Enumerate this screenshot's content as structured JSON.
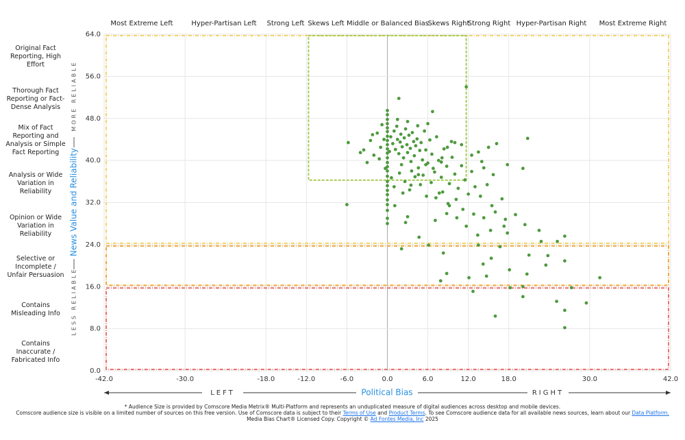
{
  "chart_data": {
    "type": "scatter",
    "bias_categories": [
      "Most Extreme Left",
      "Hyper-Partisan Left",
      "Strong Left",
      "Skews Left",
      "Middle or Balanced Bias",
      "Skews Right",
      "Strong Right",
      "Hyper-Partisan Right",
      "Most Extreme Right"
    ],
    "reliability_categories": [
      "Original Fact Reporting, High Effort",
      "Thorough Fact Reporting or Fact-Dense Analysis",
      "Mix of Fact Reporting and Analysis or Simple Fact Reporting",
      "Analysis or Wide Variation in Reliability",
      "Opinion or Wide Variation in Reliability",
      "Selective or Incomplete / Unfair Persuasion",
      "Contains Misleading Info",
      "Contains Inaccurate / Fabricated Info"
    ],
    "y_label": "News Value and Reliability",
    "y_top_note": "MORE RELIABLE",
    "y_bottom_note": "LESS RELIABLE",
    "x_label": "Political Bias",
    "x_left_note": "LEFT",
    "x_right_note": "RIGHT",
    "xlim": [
      -42,
      42
    ],
    "ylim": [
      0,
      64
    ],
    "xticks": [
      {
        "value": -42,
        "label": "-42.0"
      },
      {
        "value": -30,
        "label": "-30.0"
      },
      {
        "value": -18,
        "label": "-18.0"
      },
      {
        "value": -12,
        "label": "-12.0"
      },
      {
        "value": -6,
        "label": "-6.0"
      },
      {
        "value": 0,
        "label": "0.0"
      },
      {
        "value": 6,
        "label": "6.0"
      },
      {
        "value": 12,
        "label": "12.0"
      },
      {
        "value": 18,
        "label": "18.0"
      },
      {
        "value": 30,
        "label": "30.0"
      },
      {
        "value": 42,
        "label": "42.0"
      }
    ],
    "yticks": [
      {
        "value": 0,
        "label": "0.0"
      },
      {
        "value": 8,
        "label": "8.0"
      },
      {
        "value": 16,
        "label": "16.0"
      },
      {
        "value": 24,
        "label": "24.0"
      },
      {
        "value": 32,
        "label": "32.0"
      },
      {
        "value": 40,
        "label": "40.0"
      },
      {
        "value": 48,
        "label": "48.0"
      },
      {
        "value": 56,
        "label": "56.0"
      },
      {
        "value": 64,
        "label": "64.0"
      }
    ],
    "grid": true,
    "color": "#4e9a3e",
    "regions": [
      {
        "x": [
          -42,
          42
        ],
        "y": [
          24,
          64
        ],
        "color": "#f2d46b"
      },
      {
        "x": [
          -42,
          42
        ],
        "y": [
          16,
          24
        ],
        "color": "#f0a83a"
      },
      {
        "x": [
          -42,
          42
        ],
        "y": [
          0,
          16
        ],
        "color": "#e8706e"
      },
      {
        "x": [
          -12,
          12
        ],
        "y": [
          36,
          64
        ],
        "color": "#a6cc55"
      }
    ],
    "x": [
      0,
      0,
      0,
      0,
      0,
      0,
      0,
      0,
      0,
      0,
      0,
      0,
      0,
      0,
      0,
      0,
      0,
      0,
      0,
      0,
      0,
      0,
      0,
      0,
      0,
      0.5,
      0.8,
      1.0,
      1.2,
      1.4,
      1.5,
      1.7,
      1.9,
      2.0,
      2.2,
      2.4,
      2.5,
      2.7,
      2.9,
      3.0,
      3.2,
      3.4,
      3.5,
      3.7,
      3.9,
      4.0,
      4.2,
      4.4,
      4.6,
      4.8,
      5.0,
      5.2,
      5.5,
      5.7,
      6.0,
      6.3,
      6.6,
      7.0,
      7.3,
      7.6,
      8.0,
      8.4,
      8.8,
      9.2,
      9.6,
      10.0,
      10.5,
      11.0,
      11.5,
      12.0,
      12.5,
      13.0,
      -0.5,
      -1.0,
      -1.5,
      -2.0,
      -2.5,
      -3.0,
      -3.5,
      -1.2,
      -0.8,
      -2.2,
      -4.0,
      -0.3,
      0.6,
      1.0,
      1.8,
      2.6,
      3.3,
      4.1,
      4.9,
      5.8,
      6.5,
      7.2,
      8.2,
      9.0,
      10.2,
      11.2,
      13.8,
      14.8,
      16.0,
      17.5,
      19.0,
      12.8,
      15.3,
      13.5,
      1.5,
      3.0,
      4.5,
      6.0,
      0.3,
      2.1,
      3.6,
      5.3,
      6.8,
      8.0,
      9.5,
      11.0,
      12.5,
      14.0,
      15.0,
      -5.8,
      -6.0,
      1.7,
      11.7,
      6.7,
      20.8,
      20.1,
      31.5,
      29.5,
      26.3,
      26.3,
      25.1,
      16.0,
      26.3,
      27.3,
      26.3,
      25.2,
      22.5,
      12.7,
      7.9,
      2.1,
      4.7,
      6.1,
      8.3,
      8.8,
      12.1,
      14.7,
      14.2,
      15.4,
      18.2,
      20.1,
      20.1,
      20.7,
      22.8,
      23.5,
      23.8,
      21.0,
      18.1,
      16.7,
      17.3,
      17.8,
      20.4,
      17.8,
      16.2,
      13.5,
      14.3,
      15.7,
      17.0,
      15.5,
      14.3,
      13.4,
      11.7,
      10.3,
      9.2,
      7.7,
      7.1,
      8.8,
      10.0,
      8.9,
      8.1,
      5.7,
      4.6,
      3.5,
      2.3,
      1.1,
      3.0,
      2.7
    ],
    "values": [
      49.5,
      48.7,
      47.8,
      47.0,
      46.2,
      45.5,
      44.6,
      43.8,
      43.0,
      42.2,
      41.4,
      40.5,
      39.6,
      38.8,
      38.0,
      37.0,
      36.0,
      35.2,
      34.3,
      33.5,
      32.5,
      31.6,
      30.5,
      29.0,
      28.0,
      44.5,
      43.2,
      45.6,
      42.1,
      46.5,
      44.0,
      41.3,
      43.5,
      45.0,
      42.6,
      40.5,
      44.3,
      46.0,
      43.0,
      41.5,
      44.8,
      42.3,
      39.8,
      45.3,
      43.6,
      40.9,
      42.8,
      44.1,
      38.6,
      41.9,
      43.4,
      40.1,
      45.6,
      42.0,
      39.5,
      43.9,
      41.2,
      37.8,
      44.5,
      40.0,
      36.8,
      42.2,
      38.9,
      35.6,
      40.6,
      37.4,
      34.7,
      39.0,
      36.3,
      33.6,
      37.9,
      35.0,
      44.0,
      42.5,
      45.2,
      41.0,
      43.8,
      39.6,
      42.0,
      40.3,
      46.8,
      44.9,
      41.5,
      38.5,
      36.7,
      35.0,
      37.6,
      36.0,
      34.4,
      36.9,
      35.4,
      33.2,
      35.8,
      32.9,
      34.0,
      31.8,
      32.6,
      30.7,
      33.2,
      35.4,
      30.2,
      28.8,
      29.7,
      29.8,
      26.7,
      23.9,
      47.8,
      47.4,
      46.6,
      47.0,
      41.7,
      39.2,
      38.0,
      37.2,
      38.5,
      39.7,
      43.6,
      43.0,
      41.0,
      39.8,
      42.5,
      43.4,
      31.6,
      51.8,
      54.0,
      49.3,
      44.2,
      38.5,
      17.7,
      12.9,
      8.2,
      11.5,
      13.2,
      10.4,
      20.9,
      15.8,
      25.6,
      24.6,
      26.7,
      15.1,
      17.1,
      23.2,
      25.4,
      23.9,
      22.4,
      18.5,
      17.7,
      18.0,
      20.3,
      21.4,
      15.8,
      14.1,
      16.0,
      18.4,
      24.6,
      20.1,
      21.9,
      22.0,
      19.2,
      23.6,
      27.5,
      26.2,
      27.8,
      39.2,
      43.2,
      41.6,
      38.6,
      37.3,
      32.7,
      31.4,
      29.1,
      25.8,
      27.5,
      29.1,
      31.4,
      33.8,
      28.6,
      29.9,
      43.4,
      42.5,
      40.5,
      39.2,
      37.3,
      35.3,
      33.8,
      31.4,
      29.3,
      28.2
    ]
  },
  "footer": {
    "line1": "* Audience Size is provided by Comscore Media Metrix® Multi-Platform and represents an unduplicated measure of digital audiences across desktop and mobile devices.",
    "line2_text": "Comscore audience size is visible on a limited number of sources on this free version. Use of Comscore data is subject to their",
    "line2_link1": "Terms of Use",
    "line2_and": "and",
    "line2_link2": "Product Terms",
    "line2_text2": ". To see Comscore audience data for all available news sources, learn about our",
    "line2_link3": "Data Platform.",
    "line3_text": "Media Bias Chart® Licensed Copy. Copyright ©",
    "line3_link": "Ad Fontes Media, Inc",
    "line3_year": "2025"
  }
}
